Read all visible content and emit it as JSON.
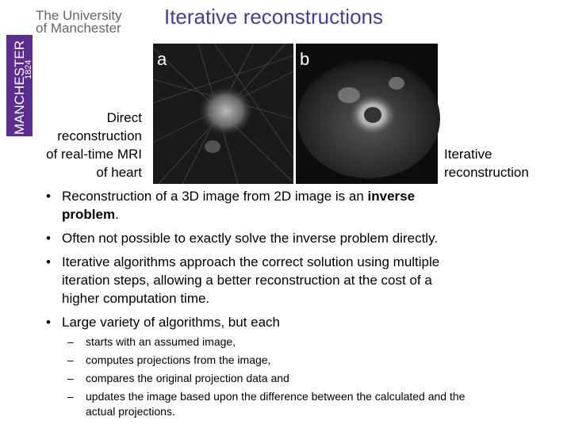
{
  "logo": {
    "line1": "The University",
    "line2": "of Manchester",
    "vertical": "MANCHESTER",
    "year": "1824"
  },
  "title": "Iterative reconstructions",
  "figure": {
    "panel_a": {
      "label": "a",
      "caption": [
        "Direct",
        "reconstruction",
        "of real-time MRI",
        "of heart"
      ]
    },
    "panel_b": {
      "label": "b",
      "caption": [
        "Iterative",
        "reconstruction"
      ]
    }
  },
  "bullets": [
    [
      [
        {
          "text": "Reconstruction of a 3D image from 2D image is an ",
          "bold": false
        },
        {
          "text": "inverse",
          "bold": true
        }
      ],
      [
        {
          "text": "problem",
          "bold": true
        },
        {
          "text": ".",
          "bold": false
        }
      ]
    ],
    [
      [
        {
          "text": "Often not possible to exactly solve the inverse problem directly.",
          "bold": false
        }
      ]
    ],
    [
      [
        {
          "text": "Iterative algorithms approach the correct solution using multiple",
          "bold": false
        }
      ],
      [
        {
          "text": "iteration steps, allowing a better reconstruction at the cost of a",
          "bold": false
        }
      ],
      [
        {
          "text": "higher computation time.",
          "bold": false
        }
      ]
    ],
    [
      [
        {
          "text": "Large variety of algorithms, but each",
          "bold": false
        }
      ]
    ]
  ],
  "sub_bullets": [
    [
      "starts with an assumed image,"
    ],
    [
      "computes projections from the image,"
    ],
    [
      "compares the original projection data and"
    ],
    [
      "updates the image based upon the difference between the calculated and the",
      "actual projections."
    ]
  ]
}
